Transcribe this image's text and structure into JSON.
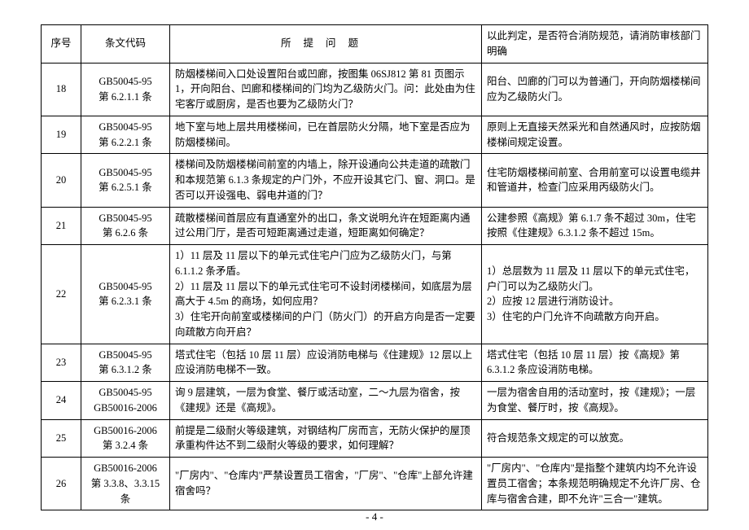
{
  "header": {
    "seq": "序号",
    "code": "条文代码",
    "question": "所提问题",
    "answer": "以此判定，是否符合消防规范，请消防审核部门明确"
  },
  "rows": [
    {
      "seq": "18",
      "code": "GB50045-95\n第 6.2.1.1 条",
      "question": "防烟楼梯间入口处设置阳台或凹廊，按图集 06SJ812 第 81 页图示 1，开向阳台、凹廊和楼梯间的门均为乙级防火门。问：此处由为住宅客厅或厨房，是否也要为乙级防火门？",
      "answer": "阳台、凹廊的门可以为普通门，开向防烟楼梯间应为乙级防火门。"
    },
    {
      "seq": "19",
      "code": "GB50045-95\n第 6.2.2.1 条",
      "question": "地下室与地上层共用楼梯间，已在首层防火分隔，地下室是否应为防烟楼梯间。",
      "answer": "原则上无直接天然采光和自然通风时，应按防烟楼梯间规定设置。"
    },
    {
      "seq": "20",
      "code": "GB50045-95\n第 6.2.5.1 条",
      "question": "楼梯间及防烟楼梯间前室的内墙上，除开设通向公共走道的疏散门和本规范第 6.1.3 条规定的户门外，不应开设其它门、窗、洞口。是否可以开设强电、弱电井道的门？",
      "answer": "住宅防烟楼梯间前室、合用前室可以设置电缆井和管道井，检查门应采用丙级防火门。"
    },
    {
      "seq": "21",
      "code": "GB50045-95\n第 6.2.6 条",
      "question": "疏散楼梯间首层应有直通室外的出口，条文说明允许在短距离内通过公用门厅，是否可短距离通过走道，短距离如何确定？",
      "answer": "公建参照《高规》第 6.1.7 条不超过 30m，住宅按照《住建规》6.3.1.2 条不超过 15m。"
    },
    {
      "seq": "22",
      "code": "GB50045-95\n第 6.2.3.1 条",
      "question": "1）11 层及 11 层以下的单元式住宅户门应为乙级防火门，与第 6.1.1.2 条矛盾。\n2）11 层及 11 层以下的单元式住宅可不设封闭楼梯间，如底层为层高大于 4.5m 的商场，如何应用？\n3）住宅开向前室或楼梯间的户门（防火门）的开启方向是否一定要向疏散方向开启？",
      "answer": "1）总层数为 11 层及 11 层以下的单元式住宅，户门可以为乙级防火门。\n2）应按 12 层进行消防设计。\n3）住宅的户门允许不向疏散方向开启。"
    },
    {
      "seq": "23",
      "code": "GB50045-95\n第 6.3.1.2 条",
      "question": "塔式住宅（包括 10 层 11 层）应设消防电梯与《住建规》12 层以上应设消防电梯不一致。",
      "answer": "塔式住宅（包括 10 层 11 层）按《高规》第 6.3.1.2 条应设消防电梯。"
    },
    {
      "seq": "24",
      "code": "GB50045-95\nGB50016-2006",
      "question": "询 9 层建筑，一层为食堂、餐厅或活动室，二～九层为宿舍，按《建规》还是《高规》。",
      "answer": "一层为宿舍自用的活动室时，按《建规》；一层为食堂、餐厅时，按《高规》。"
    },
    {
      "seq": "25",
      "code": "GB50016-2006\n第 3.2.4 条",
      "question": "前提是二级耐火等级建筑，对钢结构厂房而言，无防火保护的屋顶承重构件达不到二级耐火等级的要求，如何理解？",
      "answer": "符合规范条文规定的可以放宽。"
    },
    {
      "seq": "26",
      "code": "GB50016-2006\n第 3.3.8、3.3.15 条",
      "question": "\"厂房内\"、\"仓库内\"严禁设置员工宿舍，\"厂房\"、\"仓库\"上部允许建宿舍吗？",
      "answer": "\"厂房内\"、\"仓库内\"是指整个建筑内均不允许设置员工宿舍；本条规范明确规定不允许厂房、仓库与宿舍合建，即不允许\"三合一\"建筑。"
    }
  ],
  "pageNumber": "- 4 -"
}
